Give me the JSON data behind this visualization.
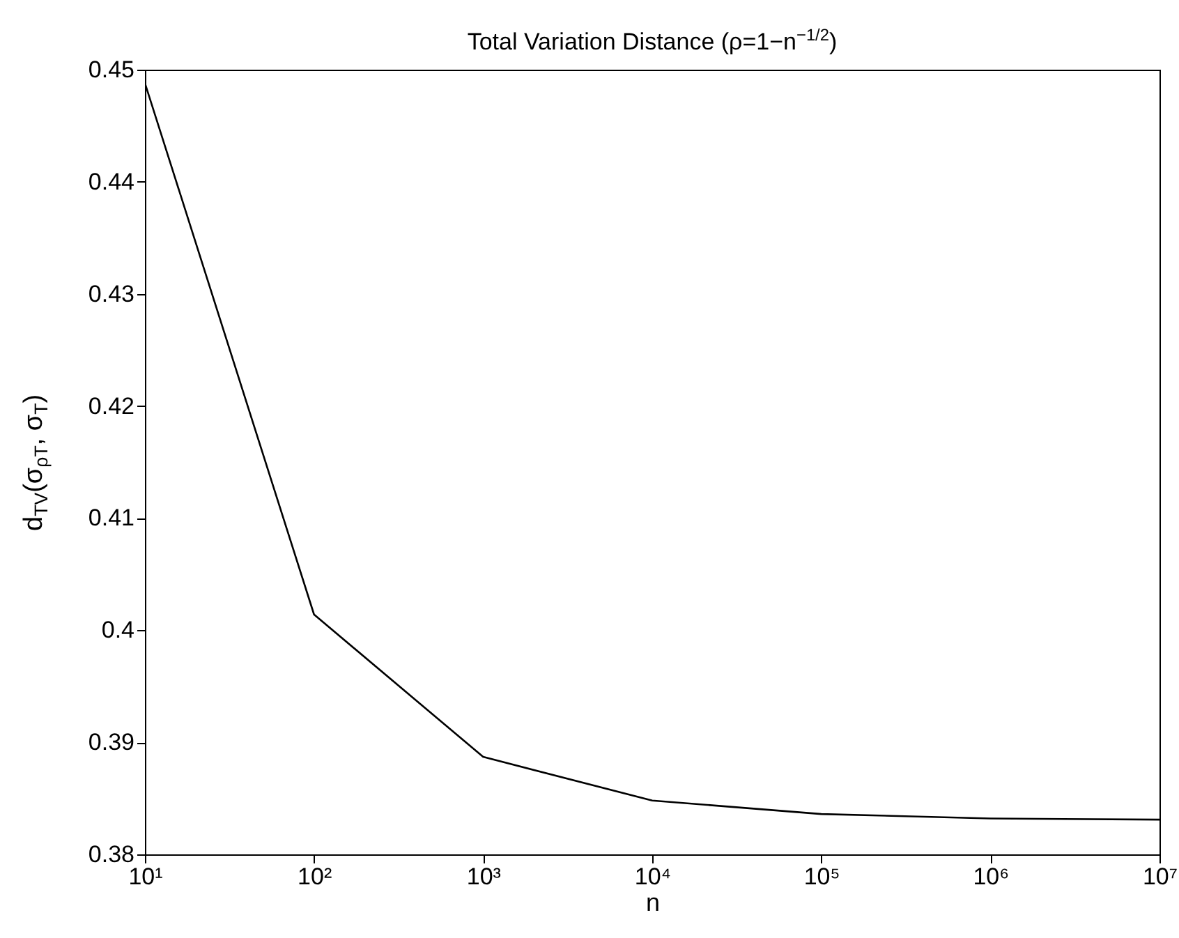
{
  "chart_data": {
    "type": "line",
    "title": "Total Variation Distance (ρ=1−n$^{−1/2}$)",
    "xlabel": "n",
    "ylabel": "d$_{TV}$(σ$_{ρT}$, σ$_{T}$)",
    "x": [
      10,
      100,
      1000,
      10000,
      100000,
      1000000,
      10000000
    ],
    "series": [
      {
        "color": "#000000",
        "values": [
          0.4488,
          0.4014,
          0.3887,
          0.3848,
          0.3836,
          0.3832,
          0.3831
        ]
      }
    ],
    "log": "x",
    "xlim": [
      10,
      10000000
    ],
    "xticks": [
      {
        "value": 10,
        "label": "10¹"
      },
      {
        "value": 100,
        "label": "10²"
      },
      {
        "value": 1000,
        "label": "10³"
      },
      {
        "value": 10000,
        "label": "10⁴"
      },
      {
        "value": 100000,
        "label": "10⁵"
      },
      {
        "value": 1000000,
        "label": "10⁶"
      },
      {
        "value": 10000000,
        "label": "10⁷"
      }
    ],
    "ylim": [
      0.38,
      0.45
    ],
    "yticks": [
      0.38,
      0.39,
      0.4,
      0.41,
      0.42,
      0.43,
      0.44,
      0.45
    ],
    "marker": "none",
    "line_style": "solid"
  }
}
